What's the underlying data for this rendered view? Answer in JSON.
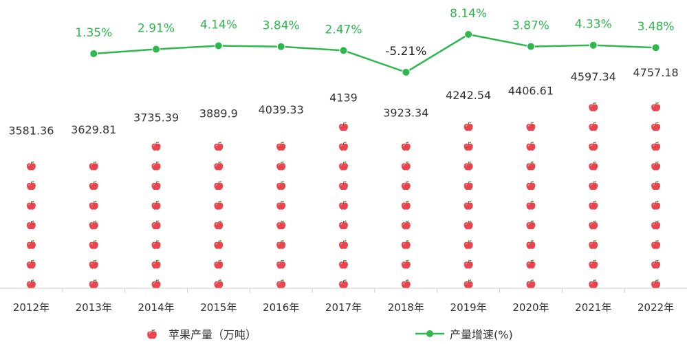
{
  "chart_data": {
    "type": "bar",
    "categories": [
      "2012年",
      "2013年",
      "2014年",
      "2015年",
      "2016年",
      "2017年",
      "2018年",
      "2019年",
      "2020年",
      "2021年",
      "2022年"
    ],
    "series": [
      {
        "name": "苹果产量（万吨）",
        "type": "pictorial-bar",
        "values": [
          3581.36,
          3629.81,
          3735.39,
          3889.9,
          4039.33,
          4139,
          3923.34,
          4242.54,
          4406.61,
          4597.34,
          4757.18
        ],
        "labels": [
          "3581.36",
          "3629.81",
          "3735.39",
          "3889.9",
          "4039.33",
          "4139",
          "3923.34",
          "4242.54",
          "4406.61",
          "4597.34",
          "4757.18"
        ],
        "color": "#e8454f"
      },
      {
        "name": "产量增速(%)",
        "type": "line",
        "values": [
          null,
          1.35,
          2.91,
          4.14,
          3.84,
          2.47,
          -5.21,
          8.14,
          3.87,
          4.33,
          3.48
        ],
        "labels": [
          "",
          "1.35%",
          "2.91%",
          "4.14%",
          "3.84%",
          "2.47%",
          "-5.21%",
          "8.14%",
          "3.87%",
          "4.33%",
          "3.48%"
        ],
        "color": "#2db84d"
      }
    ],
    "legend": "bottom",
    "grid": false
  },
  "colors": {
    "apple": "#e8454f",
    "leaf": "#3a8f2c",
    "line": "#2db84d",
    "axis": "#cccccc"
  }
}
